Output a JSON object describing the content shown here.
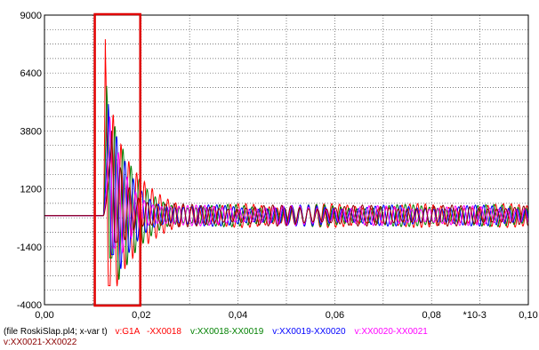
{
  "chart_data": {
    "type": "line",
    "title": "",
    "xlabel": "",
    "ylabel": "",
    "x_scale_note": "*10-3",
    "xlim": [
      0.0,
      0.1
    ],
    "ylim": [
      -4000,
      9000
    ],
    "x_ticks": [
      0.0,
      0.02,
      0.04,
      0.06,
      0.08,
      0.1
    ],
    "x_tick_labels": [
      "0,00",
      "0,02",
      "0,04",
      "0,06",
      "0,08",
      "0,10"
    ],
    "y_ticks": [
      -4000,
      -1400,
      1200,
      3800,
      6400,
      9000
    ],
    "y_tick_labels": [
      "-4000",
      "-1400",
      "1200",
      "3800",
      "6400",
      "9000"
    ],
    "grid": true,
    "file_label": "(file RoskiSlap.pl4; x-var t)",
    "highlight_box": {
      "x0": 0.0104,
      "x1": 0.0198,
      "color": "#e00000"
    },
    "prefault_level": 0,
    "fault_time": 0.0122,
    "series": [
      {
        "name": "v:G1A   -XX0018",
        "color": "#ff0000",
        "peak": 8850,
        "trough": -3150,
        "t_peak": 0.0126,
        "freq_khz": 0.62,
        "steady_amp": 430
      },
      {
        "name": "v:XX0018-XX0019",
        "color": "#008000",
        "peak": 6400,
        "trough": -1900,
        "t_peak": 0.0129,
        "freq_khz": 0.6,
        "steady_amp": 400
      },
      {
        "name": "v:XX0019-XX0020",
        "color": "#0000ff",
        "peak": 4550,
        "trough": -1750,
        "t_peak": 0.0132,
        "freq_khz": 0.58,
        "steady_amp": 380
      },
      {
        "name": "v:XX0020-XX0021",
        "color": "#ff00ff",
        "peak": 3500,
        "trough": -1450,
        "t_peak": 0.0135,
        "freq_khz": 0.56,
        "steady_amp": 360
      },
      {
        "name": "v:XX0021-XX0022",
        "color": "#8b0000",
        "peak": 3200,
        "trough": -1200,
        "t_peak": 0.01385,
        "freq_khz": 0.54,
        "steady_amp": 380
      }
    ]
  }
}
